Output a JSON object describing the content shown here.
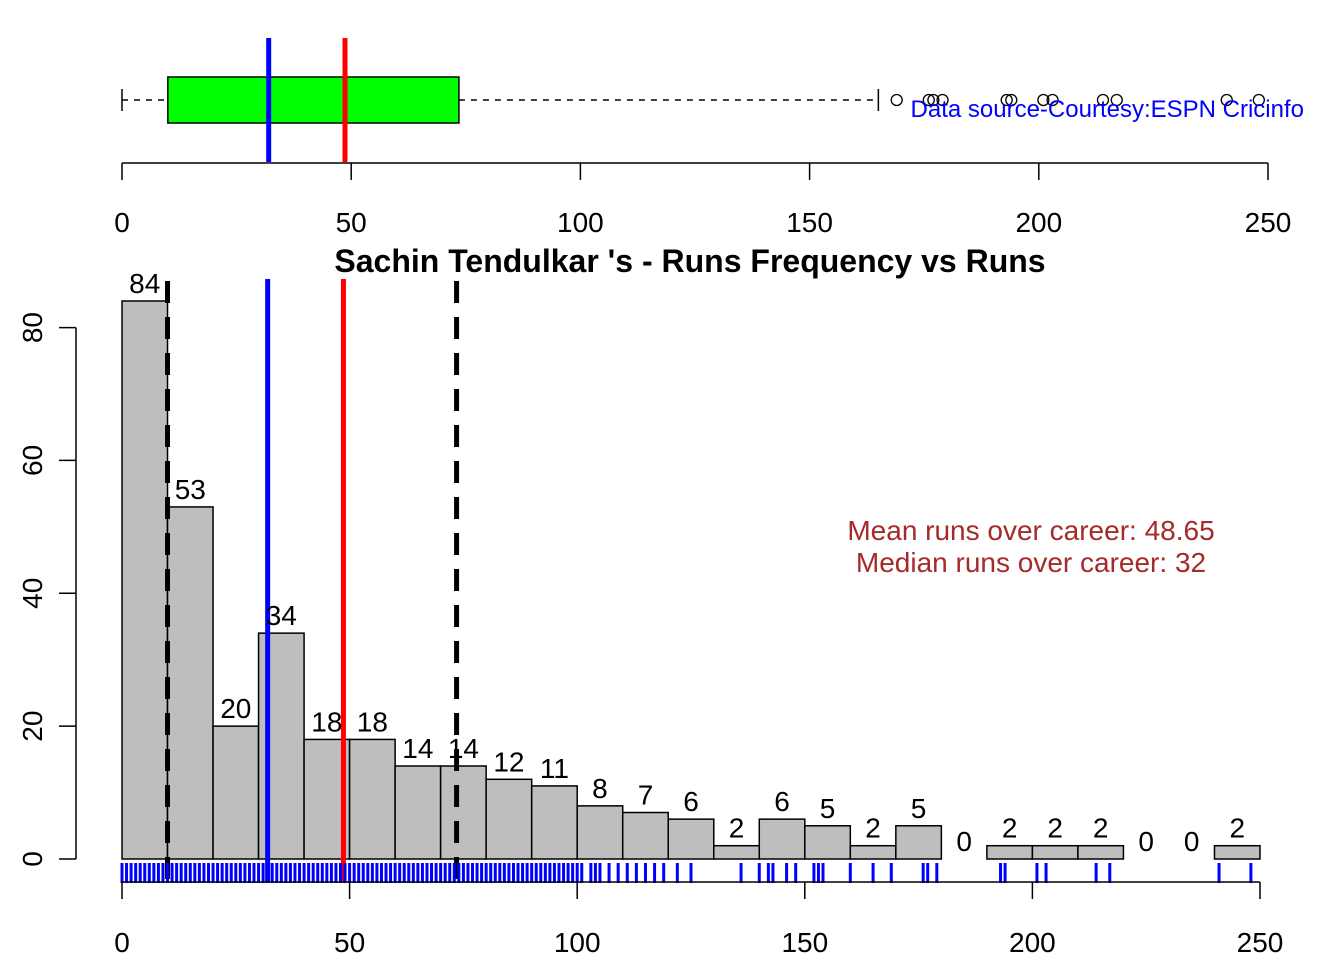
{
  "chart_data": [
    {
      "type": "boxplot",
      "orientation": "horizontal",
      "xlim": [
        0,
        250
      ],
      "x_ticks": [
        0,
        50,
        100,
        150,
        200,
        250
      ],
      "x_tick_labels": [
        "0",
        "50",
        "100",
        "150",
        "200",
        "250"
      ],
      "whisker_low": 0,
      "q1": 10,
      "q3": 73.5,
      "whisker_high": 165,
      "outliers": [
        169,
        176,
        177,
        179,
        193,
        194,
        201,
        203,
        214,
        217,
        241,
        248
      ],
      "median_line": 32,
      "mean_line": 48.65,
      "source_text": "Data source-Courtesy:ESPN Cricinfo",
      "colors": {
        "box": "#00ff00",
        "median": "#0000ff",
        "mean": "#ff0000",
        "source": "#0000ff"
      }
    },
    {
      "type": "bar",
      "subtype": "histogram",
      "title": "Sachin Tendulkar 's  - Runs Frequency vs Runs",
      "bin_edges": [
        0,
        10,
        20,
        30,
        40,
        50,
        60,
        70,
        80,
        90,
        100,
        110,
        120,
        130,
        140,
        150,
        160,
        170,
        180,
        190,
        200,
        210,
        220,
        230,
        240,
        250
      ],
      "values": [
        84,
        53,
        20,
        34,
        18,
        18,
        14,
        14,
        12,
        11,
        8,
        7,
        6,
        2,
        6,
        5,
        2,
        5,
        0,
        2,
        2,
        2,
        0,
        0,
        2
      ],
      "xlim": [
        0,
        250
      ],
      "ylim": [
        0,
        84
      ],
      "x_ticks": [
        0,
        50,
        100,
        150,
        200,
        250
      ],
      "x_tick_labels": [
        "0",
        "50",
        "100",
        "150",
        "200",
        "250"
      ],
      "y_ticks": [
        0,
        20,
        40,
        60,
        80
      ],
      "y_tick_labels": [
        "0",
        "20",
        "40",
        "60",
        "80"
      ],
      "median_line": 32,
      "mean_line": 48.65,
      "quartile_lines": [
        10,
        73.5
      ],
      "rug": [
        0,
        1,
        2,
        3,
        4,
        5,
        6,
        7,
        8,
        9,
        10,
        11,
        12,
        13,
        14,
        15,
        16,
        17,
        18,
        19,
        20,
        21,
        22,
        23,
        24,
        25,
        26,
        27,
        28,
        29,
        30,
        31,
        32,
        33,
        34,
        35,
        36,
        37,
        38,
        39,
        40,
        41,
        42,
        43,
        44,
        45,
        46,
        47,
        48,
        49,
        50,
        51,
        52,
        53,
        54,
        55,
        56,
        57,
        58,
        59,
        60,
        61,
        62,
        63,
        64,
        65,
        66,
        67,
        68,
        69,
        70,
        71,
        72,
        73,
        74,
        75,
        76,
        77,
        78,
        79,
        80,
        81,
        82,
        83,
        84,
        85,
        86,
        87,
        88,
        89,
        90,
        91,
        92,
        93,
        94,
        95,
        96,
        97,
        98,
        99,
        100,
        101,
        103,
        104,
        105,
        107,
        109,
        111,
        113,
        115,
        117,
        119,
        122,
        125,
        136,
        140,
        142,
        143,
        146,
        148,
        152,
        153,
        154,
        160,
        165,
        169,
        176,
        177,
        179,
        193,
        194,
        201,
        203,
        214,
        217,
        241,
        248
      ],
      "annotations": [
        "Mean runs over career: 48.65",
        "Median runs over career: 32"
      ],
      "colors": {
        "bar": "#bebebe",
        "median": "#0000ff",
        "mean": "#ff0000",
        "rug": "#0000ff",
        "annotation": "#a52a2a"
      }
    }
  ]
}
